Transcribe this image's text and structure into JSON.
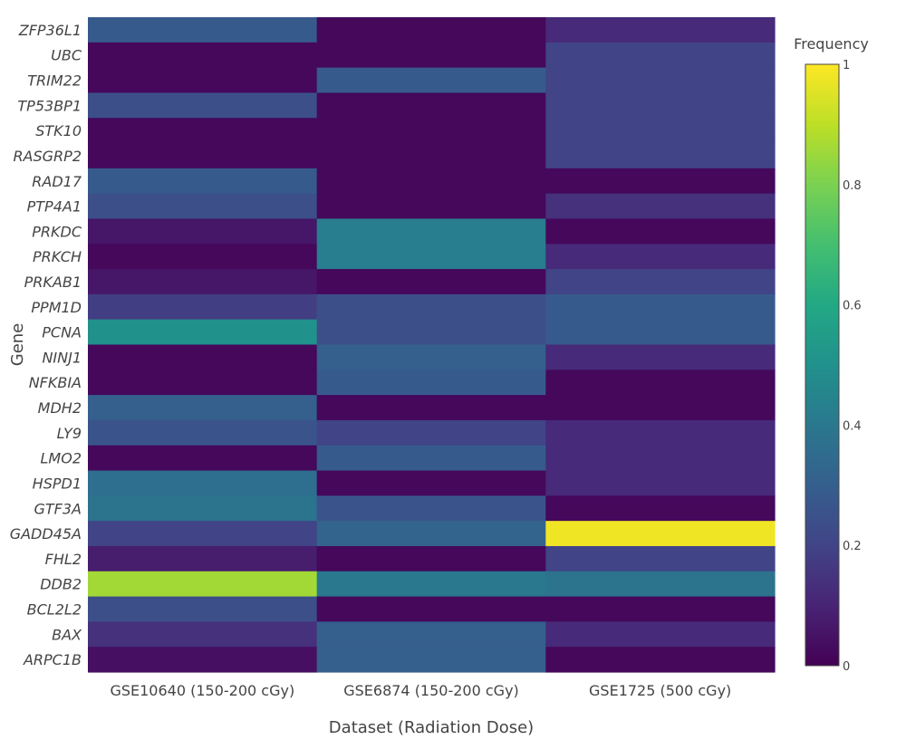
{
  "chart_data": {
    "type": "heatmap",
    "xlabel": "Dataset (Radiation Dose)",
    "ylabel": "Gene",
    "colorbar_title": "Frequency",
    "colorscale": "viridis",
    "zlim": [
      0,
      1
    ],
    "colorbar_ticks": [
      "0",
      "0.2",
      "0.4",
      "0.6",
      "0.8",
      "1"
    ],
    "colorbar_tick_values": [
      0,
      0.2,
      0.4,
      0.6,
      0.8,
      1
    ],
    "x": [
      "GSE10640 (150-200 cGy)",
      "GSE6874 (150-200 cGy)",
      "GSE1725 (500 cGy)"
    ],
    "y": [
      "ZFP36L1",
      "UBC",
      "TRIM22",
      "TP53BP1",
      "STK10",
      "RASGRP2",
      "RAD17",
      "PTP4A1",
      "PRKDC",
      "PRKCH",
      "PRKAB1",
      "PPM1D",
      "PCNA",
      "NINJ1",
      "NFKBIA",
      "MDH2",
      "LY9",
      "LMO2",
      "HSPD1",
      "GTF3A",
      "GADD45A",
      "FHL2",
      "DDB2",
      "BCL2L2",
      "BAX",
      "ARPC1B"
    ],
    "z": [
      [
        0.28,
        0.02,
        0.12
      ],
      [
        0.02,
        0.02,
        0.2
      ],
      [
        0.02,
        0.28,
        0.2
      ],
      [
        0.24,
        0.02,
        0.2
      ],
      [
        0.02,
        0.02,
        0.2
      ],
      [
        0.02,
        0.02,
        0.2
      ],
      [
        0.28,
        0.02,
        0.02
      ],
      [
        0.24,
        0.02,
        0.14
      ],
      [
        0.06,
        0.42,
        0.02
      ],
      [
        0.02,
        0.42,
        0.12
      ],
      [
        0.06,
        0.02,
        0.2
      ],
      [
        0.18,
        0.24,
        0.28
      ],
      [
        0.5,
        0.24,
        0.28
      ],
      [
        0.02,
        0.3,
        0.12
      ],
      [
        0.02,
        0.28,
        0.02
      ],
      [
        0.3,
        0.02,
        0.02
      ],
      [
        0.26,
        0.2,
        0.12
      ],
      [
        0.02,
        0.28,
        0.12
      ],
      [
        0.36,
        0.02,
        0.12
      ],
      [
        0.38,
        0.26,
        0.02
      ],
      [
        0.2,
        0.32,
        0.98
      ],
      [
        0.08,
        0.02,
        0.2
      ],
      [
        0.86,
        0.4,
        0.38
      ],
      [
        0.24,
        0.02,
        0.02
      ],
      [
        0.14,
        0.3,
        0.12
      ],
      [
        0.04,
        0.3,
        0.02
      ]
    ]
  }
}
